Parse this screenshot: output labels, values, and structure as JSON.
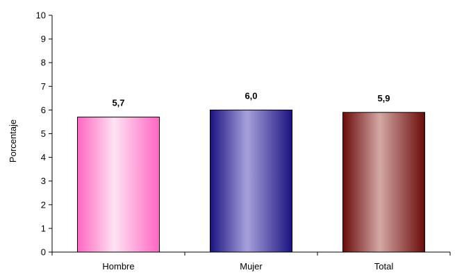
{
  "chart_data": {
    "type": "bar",
    "categories": [
      "Hombre",
      "Mujer",
      "Total"
    ],
    "values": [
      5.7,
      6.0,
      5.9
    ],
    "data_labels": [
      "5,7",
      "6,0",
      "5,9"
    ],
    "ylabel": "Porcentaje",
    "xlabel": "",
    "title": "",
    "ylim": [
      0,
      10
    ],
    "yticks": [
      0,
      1,
      2,
      3,
      4,
      5,
      6,
      7,
      8,
      9,
      10
    ],
    "grid": false,
    "legend": "none",
    "colors": [
      "#ff66c4",
      "#1a1280",
      "#6b0a0a"
    ],
    "highlight_colors": [
      "#fde3f2",
      "#a7a2dc",
      "#d3a8a4"
    ]
  }
}
